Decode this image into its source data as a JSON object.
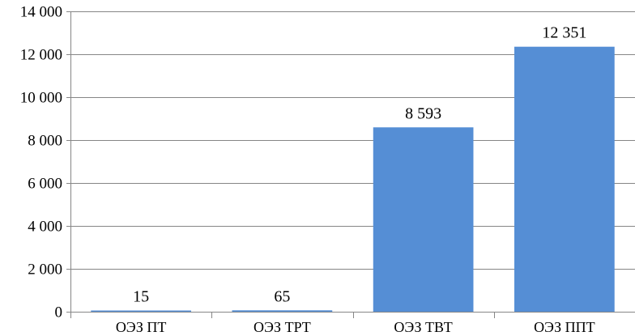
{
  "chart_data": {
    "type": "bar",
    "title": "",
    "xlabel": "",
    "ylabel": "",
    "categories": [
      "ОЭЗ ПТ",
      "ОЭЗ ТРТ",
      "ОЭЗ ТВТ",
      "ОЭЗ ППТ"
    ],
    "values": [
      15,
      65,
      8593,
      12351
    ],
    "value_labels": [
      "15",
      "65",
      "8 593",
      "12 351"
    ],
    "ylim": [
      0,
      14000
    ],
    "yticks": [
      0,
      2000,
      4000,
      6000,
      8000,
      10000,
      12000,
      14000
    ],
    "ytick_labels": [
      "0",
      "2 000",
      "4 000",
      "6 000",
      "8 000",
      "10 000",
      "12 000",
      "14 000"
    ],
    "grid": true,
    "legend": "none",
    "bar_color": "#558ed5",
    "grid_color": "#868686"
  }
}
